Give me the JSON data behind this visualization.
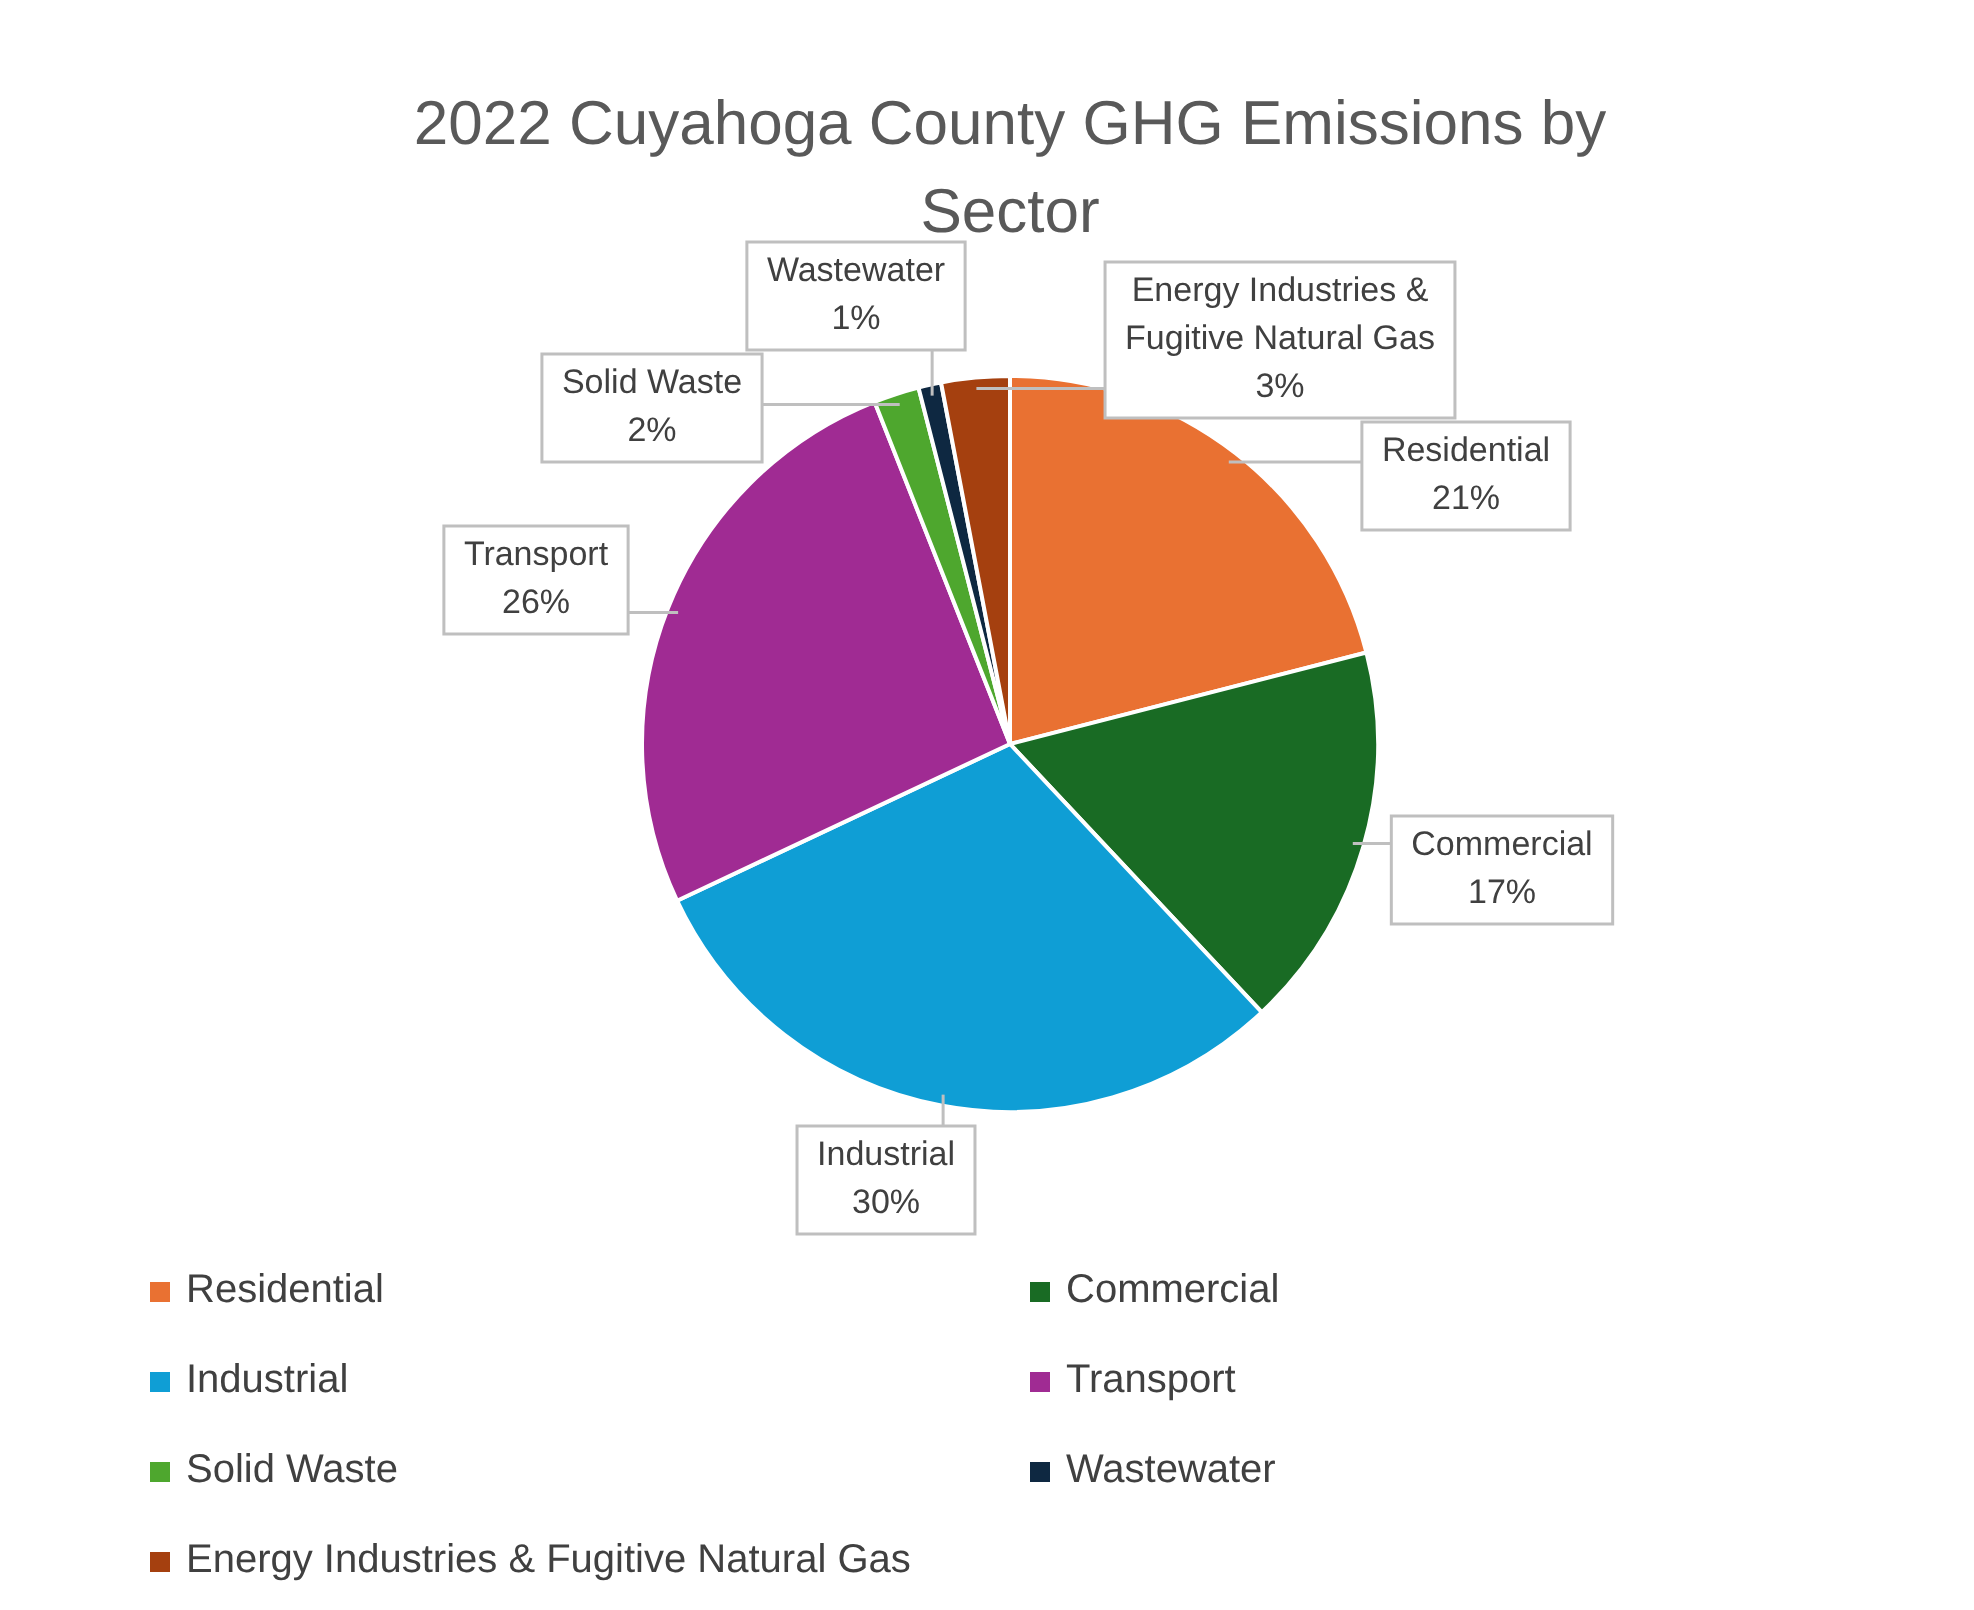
{
  "chart_data": {
    "type": "pie",
    "title": "2022 Cuyahoga County GHG Emissions by Sector",
    "categories": [
      "Residential",
      "Commercial",
      "Industrial",
      "Transport",
      "Solid Waste",
      "Wastewater",
      "Energy Industries & Fugitive Natural Gas"
    ],
    "values": [
      21,
      17,
      30,
      26,
      2,
      1,
      3
    ],
    "colors": [
      "#e97132",
      "#196b24",
      "#0f9ed5",
      "#a02b93",
      "#4ea72e",
      "#0e2841",
      "#a5400f"
    ],
    "value_labels": [
      "21%",
      "17%",
      "30%",
      "26%",
      "2%",
      "1%",
      "3%"
    ],
    "legend": "bottom"
  }
}
